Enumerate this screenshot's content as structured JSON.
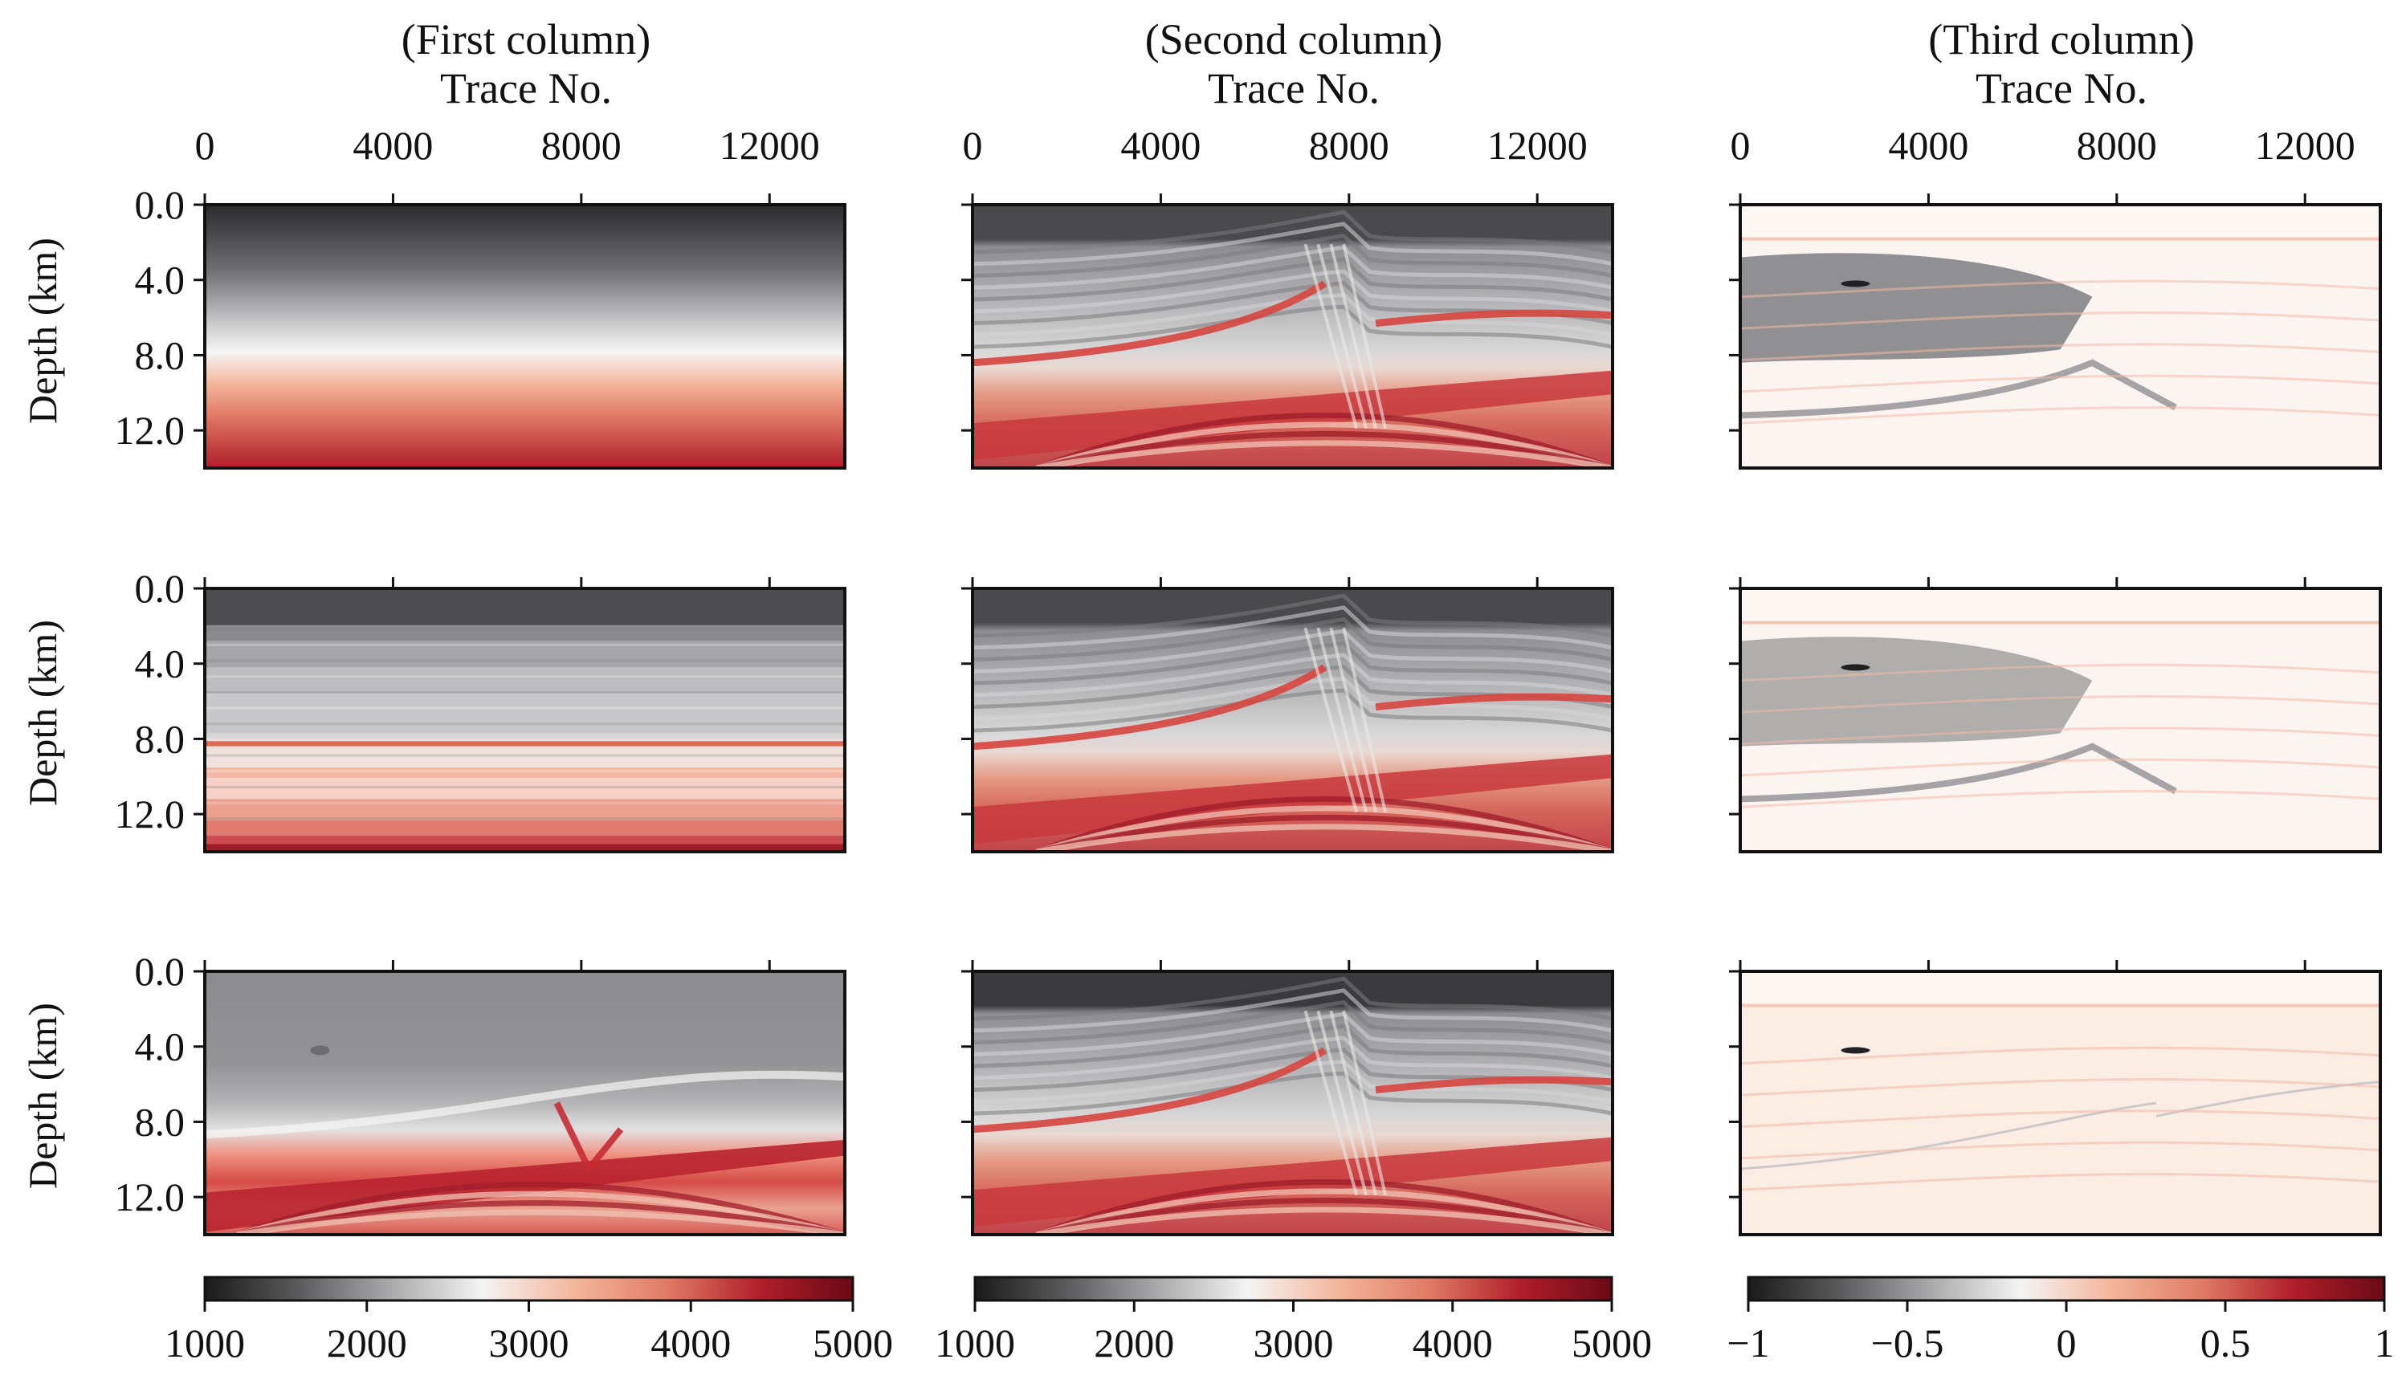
{
  "figure": {
    "columns": [
      {
        "title": "(First column)",
        "xlabel": "Trace No."
      },
      {
        "title": "(Second column)",
        "xlabel": "Trace No."
      },
      {
        "title": "(Third column)",
        "xlabel": "Trace No."
      }
    ],
    "ylabel": "Depth (km)"
  },
  "chart_data": {
    "type": "heatmap",
    "x_axis": {
      "label": "Trace No.",
      "range": [
        0,
        13600
      ],
      "ticks": [
        0,
        4000,
        8000,
        12000
      ],
      "tick_labels": [
        "0",
        "4000",
        "8000",
        "12000"
      ]
    },
    "y_axis": {
      "label": "Depth (km)",
      "range": [
        0.0,
        14.0
      ],
      "inverted": true,
      "ticks": [
        0.0,
        4.0,
        8.0,
        12.0
      ],
      "tick_labels": [
        "0.0",
        "4.0",
        "8.0",
        "12.0"
      ]
    },
    "colormap": {
      "name": "gray-to-red",
      "stops": [
        "#1a1a1a",
        "#5a5a5c",
        "#a9a9ab",
        "#f4f4f4",
        "#f3b69b",
        "#e07a66",
        "#b01e2a",
        "#6a0a16"
      ]
    },
    "colorbars": [
      {
        "column": 1,
        "range": [
          1000,
          5000
        ],
        "ticks": [
          1000,
          2000,
          3000,
          4000,
          5000
        ],
        "tick_labels": [
          "1000",
          "2000",
          "3000",
          "4000",
          "5000"
        ]
      },
      {
        "column": 2,
        "range": [
          1000,
          5000
        ],
        "ticks": [
          1000,
          2000,
          3000,
          4000,
          5000
        ],
        "tick_labels": [
          "1000",
          "2000",
          "3000",
          "4000",
          "5000"
        ]
      },
      {
        "column": 3,
        "range": [
          -1,
          1
        ],
        "ticks": [
          -1,
          -0.5,
          0,
          0.5,
          1
        ],
        "tick_labels": [
          "−1",
          "−0.5",
          "0",
          "0.5",
          "1"
        ]
      }
    ],
    "panels": [
      {
        "row": 1,
        "column": 1,
        "type": "heatmap",
        "content": "linear-gradient",
        "value_range": [
          1000,
          5000
        ]
      },
      {
        "row": 1,
        "column": 2,
        "type": "heatmap",
        "content": "velocity-model",
        "value_range": [
          1000,
          5000
        ]
      },
      {
        "row": 1,
        "column": 3,
        "type": "heatmap",
        "content": "relative-difference",
        "value_range": [
          -1,
          1
        ]
      },
      {
        "row": 2,
        "column": 1,
        "type": "heatmap",
        "content": "layered-1d",
        "value_range": [
          1000,
          5000
        ]
      },
      {
        "row": 2,
        "column": 2,
        "type": "heatmap",
        "content": "velocity-model",
        "value_range": [
          1000,
          5000
        ]
      },
      {
        "row": 2,
        "column": 3,
        "type": "heatmap",
        "content": "relative-difference",
        "value_range": [
          -1,
          1
        ]
      },
      {
        "row": 3,
        "column": 1,
        "type": "heatmap",
        "content": "smoothed-model",
        "value_range": [
          1000,
          5000
        ]
      },
      {
        "row": 3,
        "column": 2,
        "type": "heatmap",
        "content": "velocity-model",
        "value_range": [
          1000,
          5000
        ]
      },
      {
        "row": 3,
        "column": 3,
        "type": "heatmap",
        "content": "relative-difference",
        "value_range": [
          -1,
          1
        ]
      }
    ]
  }
}
